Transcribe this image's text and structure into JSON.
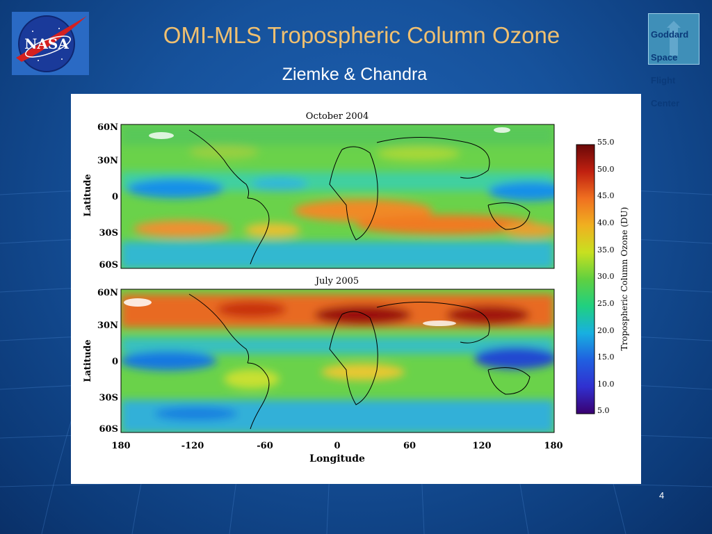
{
  "slide": {
    "title": "OMI-MLS Tropospheric Column Ozone",
    "subtitle": "Ziemke & Chandra",
    "page_number": "4",
    "logo_left": "NASA",
    "logo_right_lines": [
      "Goddard",
      "Space",
      "Flight",
      "Center"
    ]
  },
  "colors": {
    "title": "#f0c070",
    "background": "#16529c"
  },
  "figure": {
    "panels": [
      {
        "title": "October 2004"
      },
      {
        "title": "July 2005"
      }
    ],
    "latitude_label": "Latitude",
    "longitude_label": "Longitude",
    "lat_ticks": [
      "60N",
      "30N",
      "0",
      "30S",
      "60S"
    ],
    "lon_ticks": [
      "180",
      "-120",
      "-60",
      "0",
      "60",
      "120",
      "180"
    ],
    "colorbar": {
      "label": "Tropospheric Column Ozone (DU)",
      "ticks": [
        "55.0",
        "50.0",
        "45.0",
        "40.0",
        "35.0",
        "30.0",
        "25.0",
        "20.0",
        "15.0",
        "10.0",
        "5.0"
      ]
    }
  }
}
